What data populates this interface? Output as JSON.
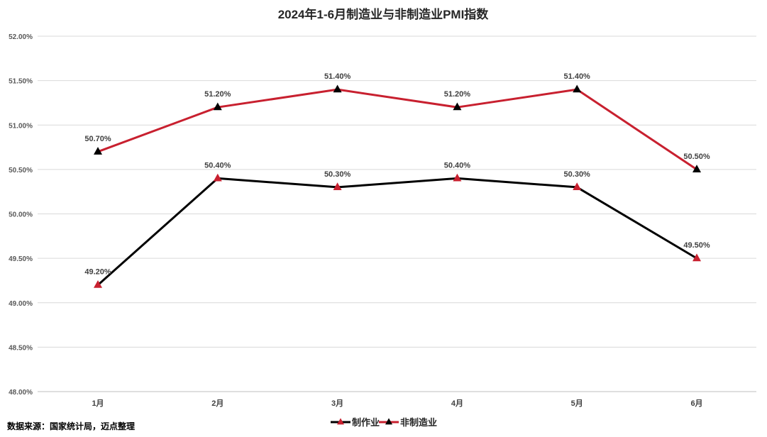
{
  "chart_data": {
    "type": "line",
    "title": "2024年1-6月制造业与非制造业PMI指数",
    "categories": [
      "1月",
      "2月",
      "3月",
      "4月",
      "5月",
      "6月"
    ],
    "ylim": [
      48.0,
      52.0
    ],
    "yticks": [
      "48.00%",
      "48.50%",
      "49.00%",
      "49.50%",
      "50.00%",
      "50.50%",
      "51.00%",
      "51.50%",
      "52.00%"
    ],
    "ytick_values": [
      48.0,
      48.5,
      49.0,
      49.5,
      50.0,
      50.5,
      51.0,
      51.5,
      52.0
    ],
    "grid": true,
    "legend_position": "bottom",
    "series": [
      {
        "name": "制作业",
        "values": [
          49.2,
          50.4,
          50.3,
          50.4,
          50.3,
          49.5
        ],
        "labels": [
          "49.20%",
          "50.40%",
          "50.30%",
          "50.40%",
          "50.30%",
          "49.50%"
        ],
        "line_color": "#000000",
        "marker_color": "#c8202f"
      },
      {
        "name": "非制造业",
        "values": [
          50.7,
          51.2,
          51.4,
          51.2,
          51.4,
          50.5
        ],
        "labels": [
          "50.70%",
          "51.20%",
          "51.40%",
          "51.20%",
          "51.40%",
          "50.50%"
        ],
        "line_color": "#c8202f",
        "marker_color": "#000000"
      }
    ]
  },
  "source_note": "数据来源：国家统计局，迈点整理"
}
